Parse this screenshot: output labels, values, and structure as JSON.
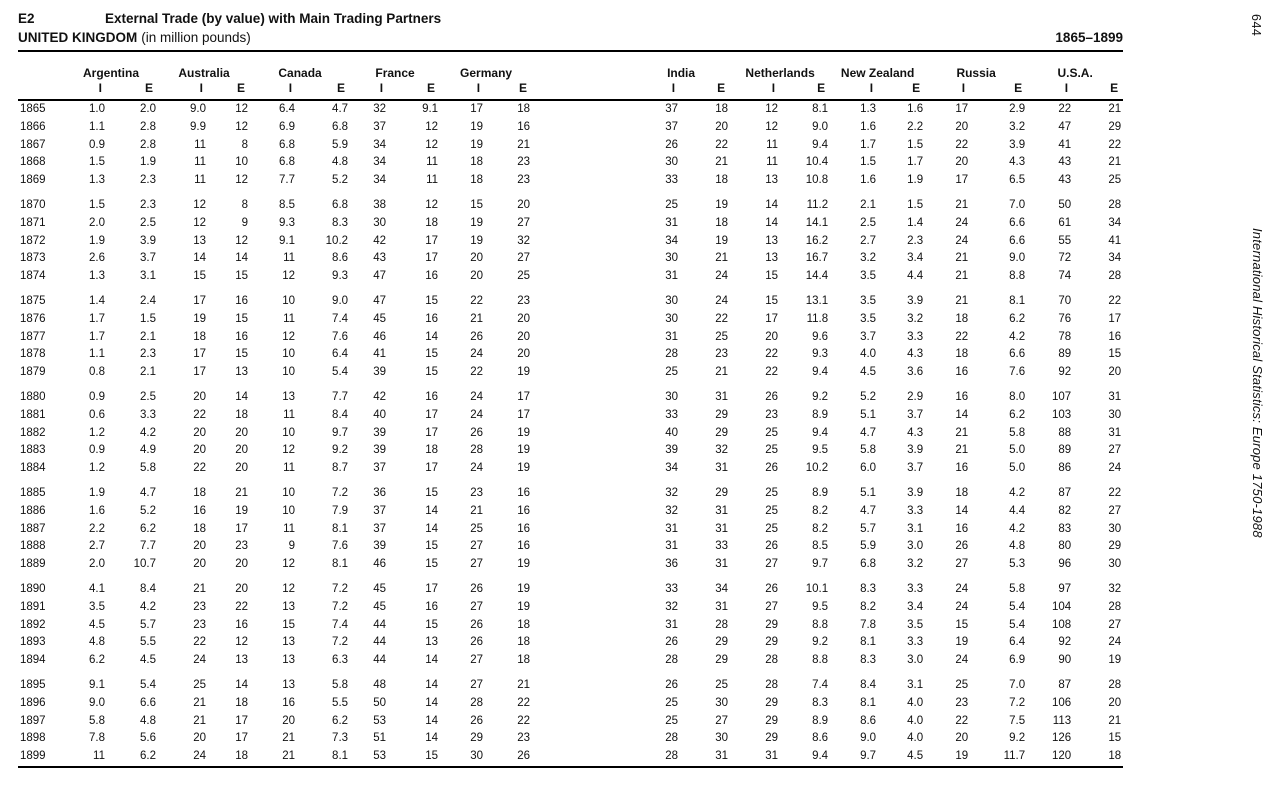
{
  "page": {
    "section_code": "E2",
    "title": "External Trade (by value) with Main Trading Partners",
    "region": "UNITED KINGDOM",
    "unit_note": "(in million pounds)",
    "year_range": "1865–1899",
    "page_number": "644",
    "book_title": "International Historical Statistics: Europe 1750-1988"
  },
  "table": {
    "partners": [
      "Argentina",
      "Australia",
      "Canada",
      "France",
      "Germany",
      "India",
      "Netherlands",
      "New Zealand",
      "Russia",
      "U.S.A."
    ],
    "flow_labels": {
      "imports": "I",
      "exports": "E"
    },
    "row_groups": [
      [
        {
          "year": "1865",
          "values": [
            "1.0",
            "2.0",
            "9.0",
            "12",
            "6.4",
            "4.7",
            "32",
            "9.1",
            "17",
            "18",
            "37",
            "18",
            "12",
            "8.1",
            "1.3",
            "1.6",
            "17",
            "2.9",
            "22",
            "21"
          ]
        },
        {
          "year": "1866",
          "values": [
            "1.1",
            "2.8",
            "9.9",
            "12",
            "6.9",
            "6.8",
            "37",
            "12",
            "19",
            "16",
            "37",
            "20",
            "12",
            "9.0",
            "1.6",
            "2.2",
            "20",
            "3.2",
            "47",
            "29"
          ]
        },
        {
          "year": "1867",
          "values": [
            "0.9",
            "2.8",
            "11",
            "8",
            "6.8",
            "5.9",
            "34",
            "12",
            "19",
            "21",
            "26",
            "22",
            "11",
            "9.4",
            "1.7",
            "1.5",
            "22",
            "3.9",
            "41",
            "22"
          ]
        },
        {
          "year": "1868",
          "values": [
            "1.5",
            "1.9",
            "11",
            "10",
            "6.8",
            "4.8",
            "34",
            "11",
            "18",
            "23",
            "30",
            "21",
            "11",
            "10.4",
            "1.5",
            "1.7",
            "20",
            "4.3",
            "43",
            "21"
          ]
        },
        {
          "year": "1869",
          "values": [
            "1.3",
            "2.3",
            "11",
            "12",
            "7.7",
            "5.2",
            "34",
            "11",
            "18",
            "23",
            "33",
            "18",
            "13",
            "10.8",
            "1.6",
            "1.9",
            "17",
            "6.5",
            "43",
            "25"
          ]
        }
      ],
      [
        {
          "year": "1870",
          "values": [
            "1.5",
            "2.3",
            "12",
            "8",
            "8.5",
            "6.8",
            "38",
            "12",
            "15",
            "20",
            "25",
            "19",
            "14",
            "11.2",
            "2.1",
            "1.5",
            "21",
            "7.0",
            "50",
            "28"
          ]
        },
        {
          "year": "1871",
          "values": [
            "2.0",
            "2.5",
            "12",
            "9",
            "9.3",
            "8.3",
            "30",
            "18",
            "19",
            "27",
            "31",
            "18",
            "14",
            "14.1",
            "2.5",
            "1.4",
            "24",
            "6.6",
            "61",
            "34"
          ]
        },
        {
          "year": "1872",
          "values": [
            "1.9",
            "3.9",
            "13",
            "12",
            "9.1",
            "10.2",
            "42",
            "17",
            "19",
            "32",
            "34",
            "19",
            "13",
            "16.2",
            "2.7",
            "2.3",
            "24",
            "6.6",
            "55",
            "41"
          ]
        },
        {
          "year": "1873",
          "values": [
            "2.6",
            "3.7",
            "14",
            "14",
            "11",
            "8.6",
            "43",
            "17",
            "20",
            "27",
            "30",
            "21",
            "13",
            "16.7",
            "3.2",
            "3.4",
            "21",
            "9.0",
            "72",
            "34"
          ]
        },
        {
          "year": "1874",
          "values": [
            "1.3",
            "3.1",
            "15",
            "15",
            "12",
            "9.3",
            "47",
            "16",
            "20",
            "25",
            "31",
            "24",
            "15",
            "14.4",
            "3.5",
            "4.4",
            "21",
            "8.8",
            "74",
            "28"
          ]
        }
      ],
      [
        {
          "year": "1875",
          "values": [
            "1.4",
            "2.4",
            "17",
            "16",
            "10",
            "9.0",
            "47",
            "15",
            "22",
            "23",
            "30",
            "24",
            "15",
            "13.1",
            "3.5",
            "3.9",
            "21",
            "8.1",
            "70",
            "22"
          ]
        },
        {
          "year": "1876",
          "values": [
            "1.7",
            "1.5",
            "19",
            "15",
            "11",
            "7.4",
            "45",
            "16",
            "21",
            "20",
            "30",
            "22",
            "17",
            "11.8",
            "3.5",
            "3.2",
            "18",
            "6.2",
            "76",
            "17"
          ]
        },
        {
          "year": "1877",
          "values": [
            "1.7",
            "2.1",
            "18",
            "16",
            "12",
            "7.6",
            "46",
            "14",
            "26",
            "20",
            "31",
            "25",
            "20",
            "9.6",
            "3.7",
            "3.3",
            "22",
            "4.2",
            "78",
            "16"
          ]
        },
        {
          "year": "1878",
          "values": [
            "1.1",
            "2.3",
            "17",
            "15",
            "10",
            "6.4",
            "41",
            "15",
            "24",
            "20",
            "28",
            "23",
            "22",
            "9.3",
            "4.0",
            "4.3",
            "18",
            "6.6",
            "89",
            "15"
          ]
        },
        {
          "year": "1879",
          "values": [
            "0.8",
            "2.1",
            "17",
            "13",
            "10",
            "5.4",
            "39",
            "15",
            "22",
            "19",
            "25",
            "21",
            "22",
            "9.4",
            "4.5",
            "3.6",
            "16",
            "7.6",
            "92",
            "20"
          ]
        }
      ],
      [
        {
          "year": "1880",
          "values": [
            "0.9",
            "2.5",
            "20",
            "14",
            "13",
            "7.7",
            "42",
            "16",
            "24",
            "17",
            "30",
            "31",
            "26",
            "9.2",
            "5.2",
            "2.9",
            "16",
            "8.0",
            "107",
            "31"
          ]
        },
        {
          "year": "1881",
          "values": [
            "0.6",
            "3.3",
            "22",
            "18",
            "11",
            "8.4",
            "40",
            "17",
            "24",
            "17",
            "33",
            "29",
            "23",
            "8.9",
            "5.1",
            "3.7",
            "14",
            "6.2",
            "103",
            "30"
          ]
        },
        {
          "year": "1882",
          "values": [
            "1.2",
            "4.2",
            "20",
            "20",
            "10",
            "9.7",
            "39",
            "17",
            "26",
            "19",
            "40",
            "29",
            "25",
            "9.4",
            "4.7",
            "4.3",
            "21",
            "5.8",
            "88",
            "31"
          ]
        },
        {
          "year": "1883",
          "values": [
            "0.9",
            "4.9",
            "20",
            "20",
            "12",
            "9.2",
            "39",
            "18",
            "28",
            "19",
            "39",
            "32",
            "25",
            "9.5",
            "5.8",
            "3.9",
            "21",
            "5.0",
            "89",
            "27"
          ]
        },
        {
          "year": "1884",
          "values": [
            "1.2",
            "5.8",
            "22",
            "20",
            "11",
            "8.7",
            "37",
            "17",
            "24",
            "19",
            "34",
            "31",
            "26",
            "10.2",
            "6.0",
            "3.7",
            "16",
            "5.0",
            "86",
            "24"
          ]
        }
      ],
      [
        {
          "year": "1885",
          "values": [
            "1.9",
            "4.7",
            "18",
            "21",
            "10",
            "7.2",
            "36",
            "15",
            "23",
            "16",
            "32",
            "29",
            "25",
            "8.9",
            "5.1",
            "3.9",
            "18",
            "4.2",
            "87",
            "22"
          ]
        },
        {
          "year": "1886",
          "values": [
            "1.6",
            "5.2",
            "16",
            "19",
            "10",
            "7.9",
            "37",
            "14",
            "21",
            "16",
            "32",
            "31",
            "25",
            "8.2",
            "4.7",
            "3.3",
            "14",
            "4.4",
            "82",
            "27"
          ]
        },
        {
          "year": "1887",
          "values": [
            "2.2",
            "6.2",
            "18",
            "17",
            "11",
            "8.1",
            "37",
            "14",
            "25",
            "16",
            "31",
            "31",
            "25",
            "8.2",
            "5.7",
            "3.1",
            "16",
            "4.2",
            "83",
            "30"
          ]
        },
        {
          "year": "1888",
          "values": [
            "2.7",
            "7.7",
            "20",
            "23",
            "9",
            "7.6",
            "39",
            "15",
            "27",
            "16",
            "31",
            "33",
            "26",
            "8.5",
            "5.9",
            "3.0",
            "26",
            "4.8",
            "80",
            "29"
          ]
        },
        {
          "year": "1889",
          "values": [
            "2.0",
            "10.7",
            "20",
            "20",
            "12",
            "8.1",
            "46",
            "15",
            "27",
            "19",
            "36",
            "31",
            "27",
            "9.7",
            "6.8",
            "3.2",
            "27",
            "5.3",
            "96",
            "30"
          ]
        }
      ],
      [
        {
          "year": "1890",
          "values": [
            "4.1",
            "8.4",
            "21",
            "20",
            "12",
            "7.2",
            "45",
            "17",
            "26",
            "19",
            "33",
            "34",
            "26",
            "10.1",
            "8.3",
            "3.3",
            "24",
            "5.8",
            "97",
            "32"
          ]
        },
        {
          "year": "1891",
          "values": [
            "3.5",
            "4.2",
            "23",
            "22",
            "13",
            "7.2",
            "45",
            "16",
            "27",
            "19",
            "32",
            "31",
            "27",
            "9.5",
            "8.2",
            "3.4",
            "24",
            "5.4",
            "104",
            "28"
          ]
        },
        {
          "year": "1892",
          "values": [
            "4.5",
            "5.7",
            "23",
            "16",
            "15",
            "7.4",
            "44",
            "15",
            "26",
            "18",
            "31",
            "28",
            "29",
            "8.8",
            "7.8",
            "3.5",
            "15",
            "5.4",
            "108",
            "27"
          ]
        },
        {
          "year": "1893",
          "values": [
            "4.8",
            "5.5",
            "22",
            "12",
            "13",
            "7.2",
            "44",
            "13",
            "26",
            "18",
            "26",
            "29",
            "29",
            "9.2",
            "8.1",
            "3.3",
            "19",
            "6.4",
            "92",
            "24"
          ]
        },
        {
          "year": "1894",
          "values": [
            "6.2",
            "4.5",
            "24",
            "13",
            "13",
            "6.3",
            "44",
            "14",
            "27",
            "18",
            "28",
            "29",
            "28",
            "8.8",
            "8.3",
            "3.0",
            "24",
            "6.9",
            "90",
            "19"
          ]
        }
      ],
      [
        {
          "year": "1895",
          "values": [
            "9.1",
            "5.4",
            "25",
            "14",
            "13",
            "5.8",
            "48",
            "14",
            "27",
            "21",
            "26",
            "25",
            "28",
            "7.4",
            "8.4",
            "3.1",
            "25",
            "7.0",
            "87",
            "28"
          ]
        },
        {
          "year": "1896",
          "values": [
            "9.0",
            "6.6",
            "21",
            "18",
            "16",
            "5.5",
            "50",
            "14",
            "28",
            "22",
            "25",
            "30",
            "29",
            "8.3",
            "8.1",
            "4.0",
            "23",
            "7.2",
            "106",
            "20"
          ]
        },
        {
          "year": "1897",
          "values": [
            "5.8",
            "4.8",
            "21",
            "17",
            "20",
            "6.2",
            "53",
            "14",
            "26",
            "22",
            "25",
            "27",
            "29",
            "8.9",
            "8.6",
            "4.0",
            "22",
            "7.5",
            "113",
            "21"
          ]
        },
        {
          "year": "1898",
          "values": [
            "7.8",
            "5.6",
            "20",
            "17",
            "21",
            "7.3",
            "51",
            "14",
            "29",
            "23",
            "28",
            "30",
            "29",
            "8.6",
            "9.0",
            "4.0",
            "20",
            "9.2",
            "126",
            "15"
          ]
        },
        {
          "year": "1899",
          "values": [
            "11",
            "6.2",
            "24",
            "18",
            "21",
            "8.1",
            "53",
            "15",
            "30",
            "26",
            "28",
            "31",
            "31",
            "9.4",
            "9.7",
            "4.5",
            "19",
            "11.7",
            "120",
            "18"
          ]
        }
      ]
    ]
  }
}
